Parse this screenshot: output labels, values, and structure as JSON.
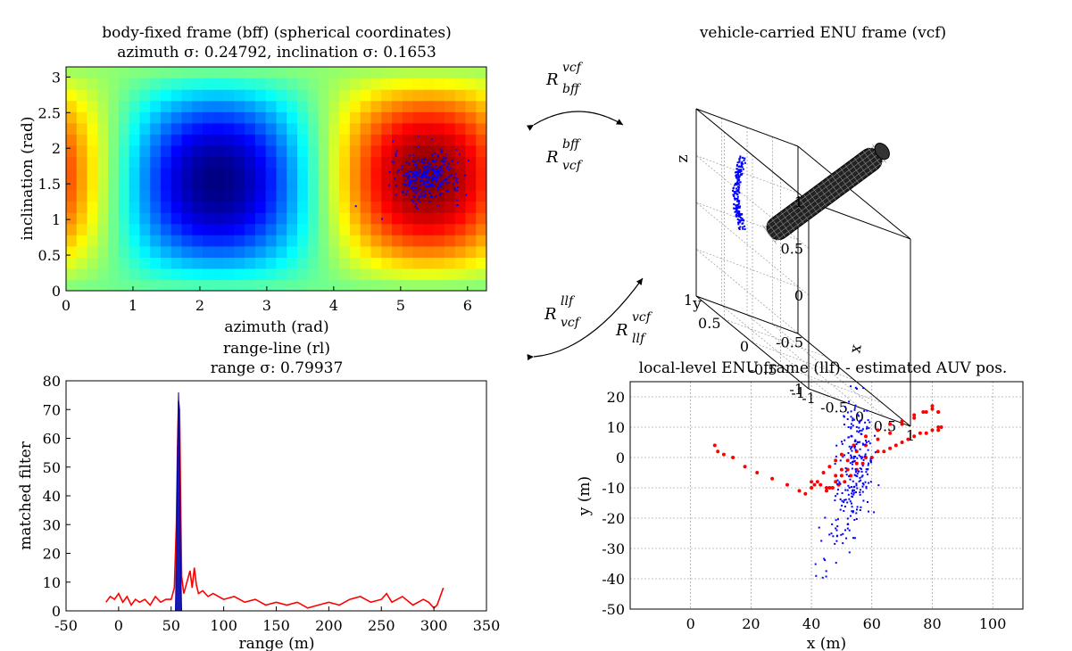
{
  "chart_data": [
    {
      "id": "spherical",
      "type": "heatmap",
      "title": "body-fixed frame (bff) (spherical coordinates)",
      "subtitle": "azimuth σ: 0.24792, inclination σ: 0.1653",
      "xlabel": "azimuth (rad)",
      "ylabel": "inclination (rad)",
      "xlim": [
        0,
        6.283
      ],
      "ylim": [
        0,
        3.1416
      ],
      "xticks": [
        "0",
        "1",
        "2",
        "3",
        "4",
        "5",
        "6"
      ],
      "yticks": [
        "0",
        "0.5",
        "1",
        "1.5",
        "2",
        "2.5",
        "3"
      ],
      "colormap": "jet",
      "grid": false,
      "overlay": {
        "type": "scatter",
        "color": "#0000ff",
        "center": [
          5.4,
          1.6
        ],
        "spread": [
          0.25,
          0.17
        ],
        "count": 300
      }
    },
    {
      "id": "rangeline",
      "type": "line",
      "title": "range-line (rl)",
      "subtitle": "range σ: 0.79937",
      "xlabel": "range (m)",
      "ylabel": "matched filter",
      "xlim": [
        -50,
        350
      ],
      "ylim": [
        0,
        80
      ],
      "xticks": [
        "-50",
        "0",
        "50",
        "100",
        "150",
        "200",
        "250",
        "300",
        "350"
      ],
      "yticks": [
        "0",
        "10",
        "20",
        "30",
        "40",
        "50",
        "60",
        "70",
        "80"
      ],
      "grid": false,
      "series": [
        {
          "color": "#ff0000",
          "x": [
            -12,
            -8,
            -4,
            0,
            4,
            8,
            12,
            16,
            20,
            25,
            30,
            35,
            40,
            45,
            50,
            53,
            55,
            56,
            57,
            58,
            59,
            60,
            62,
            65,
            68,
            70,
            72,
            74,
            76,
            80,
            85,
            90,
            100,
            110,
            120,
            130,
            140,
            150,
            160,
            170,
            180,
            190,
            200,
            210,
            220,
            230,
            240,
            250,
            255,
            260,
            270,
            280,
            290,
            295,
            300,
            303,
            306,
            309
          ],
          "y": [
            3,
            5,
            4,
            6,
            3,
            5,
            2,
            4,
            3,
            4,
            2,
            5,
            3,
            4,
            4,
            8,
            30,
            55,
            73,
            70,
            40,
            12,
            6,
            10,
            14,
            8,
            15,
            9,
            6,
            7,
            5,
            6,
            4,
            5,
            3,
            4,
            2,
            3,
            2,
            3,
            1,
            2,
            3,
            2,
            4,
            5,
            3,
            4,
            6,
            3,
            5,
            2,
            4,
            3,
            1,
            2,
            5,
            8
          ]
        },
        {
          "color": "#0000aa",
          "x": [
            54,
            55,
            56,
            57,
            58,
            59,
            60
          ],
          "y": [
            0,
            20,
            55,
            76,
            60,
            20,
            0
          ]
        }
      ]
    },
    {
      "id": "enu3d",
      "type": "scatter",
      "title": "vehicle-carried ENU frame (vcf)",
      "xlabel": "x",
      "ylabel": "y",
      "zlabel": "z",
      "xlim": [
        -1,
        1
      ],
      "ylim": [
        -1,
        1
      ],
      "zlim": [
        -1,
        1
      ],
      "xticks": [
        "-1",
        "-0.5",
        "0",
        "0.5",
        "1"
      ],
      "yticks": [
        "-1",
        "-0.5",
        "0",
        "0.5",
        "1"
      ],
      "zticks": [
        "-1",
        "-0.5",
        "0",
        "0.5",
        "1"
      ],
      "grid": true,
      "body_color": "#000000",
      "points_color": "#0000ff",
      "points_count": 180
    },
    {
      "id": "localenu",
      "type": "scatter",
      "title": "local-level ENU frame (llf) - estimated AUV pos.",
      "xlabel": "x (m)",
      "ylabel": "y (m)",
      "xlim": [
        -20,
        110
      ],
      "ylim": [
        -50,
        25
      ],
      "xticks": [
        "0",
        "20",
        "40",
        "60",
        "80",
        "100"
      ],
      "yticks": [
        "-50",
        "-40",
        "-30",
        "-20",
        "-10",
        "0",
        "10",
        "20"
      ],
      "grid": true,
      "series": [
        {
          "color": "#ff0000",
          "x": [
            8,
            9,
            11,
            14,
            18,
            22,
            27,
            32,
            36,
            38,
            40,
            42,
            44,
            46,
            48,
            50,
            54,
            58,
            62,
            66,
            70,
            74,
            77,
            80,
            82,
            83,
            82,
            78,
            74,
            70,
            66,
            62,
            58,
            55,
            52,
            50,
            48,
            46,
            45
          ],
          "x2": [
            48,
            50,
            52,
            55,
            58,
            62,
            66,
            70,
            74,
            78,
            80,
            82,
            82,
            80,
            76,
            72,
            68,
            64,
            60,
            57,
            55,
            53,
            51,
            49,
            47,
            45,
            43,
            41,
            40
          ],
          "y": [
            4,
            2,
            1,
            0,
            -3,
            -5,
            -7,
            -9,
            -11,
            -12,
            -10,
            -8,
            -5,
            -3,
            -1,
            1,
            4,
            7,
            9,
            11,
            12,
            14,
            15,
            16,
            15,
            10,
            9,
            8,
            7,
            5,
            3,
            2,
            0,
            -2,
            -4,
            -6,
            -8,
            -10,
            -11
          ],
          "y2": [
            -6,
            -4,
            -1,
            2,
            4,
            6,
            8,
            11,
            13,
            15,
            17,
            15,
            10,
            9,
            8,
            6,
            4,
            2,
            0,
            -2,
            -4,
            -6,
            -8,
            -9,
            -10,
            -10,
            -9,
            -9,
            -8
          ]
        },
        {
          "color": "#0000ff",
          "count": 260,
          "center": [
            55,
            -5
          ],
          "spread": [
            3,
            14
          ]
        }
      ]
    }
  ],
  "rotation_labels": {
    "r1_main": "R",
    "r1_sup": "vcf",
    "r1_sub": "bff",
    "r2_main": "R",
    "r2_sup": "bff",
    "r2_sub": "vcf",
    "r3_main": "R",
    "r3_sup": "llf",
    "r3_sub": "vcf",
    "r4_main": "R",
    "r4_sup": "vcf",
    "r4_sub": "llf"
  }
}
